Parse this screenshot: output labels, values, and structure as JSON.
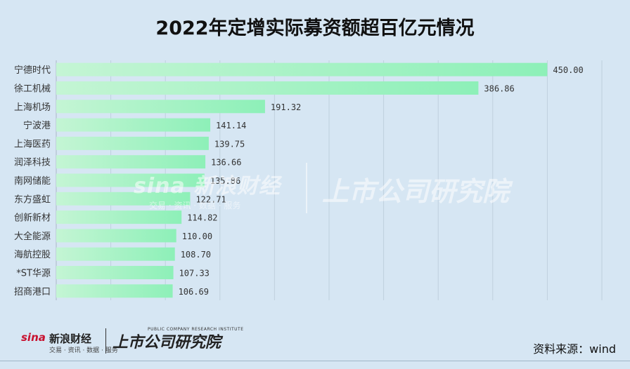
{
  "chart_data": {
    "type": "bar",
    "orientation": "horizontal",
    "title": "2022年定增实际募资额超百亿元情况",
    "categories": [
      "宁德时代",
      "徐工机械",
      "上海机场",
      "宁波港",
      "上海医药",
      "润泽科技",
      "南网储能",
      "东方盛虹",
      "创新新材",
      "大全能源",
      "海航控股",
      "*ST华源",
      "招商港口"
    ],
    "values": [
      450.0,
      386.86,
      191.32,
      141.14,
      139.75,
      136.66,
      135.86,
      122.71,
      114.82,
      110.0,
      108.7,
      107.33,
      106.69
    ],
    "value_labels": [
      "450.00",
      "386.86",
      "191.32",
      "141.14",
      "139.75",
      "136.66",
      "135.86",
      "122.71",
      "114.82",
      "110.00",
      "108.70",
      "107.33",
      "106.69"
    ],
    "xlim": [
      0,
      500
    ],
    "grid": true,
    "bar_color_start": "#c4f5d4",
    "bar_color_end": "#8df0b8"
  },
  "watermark": {
    "sina_text": "sina 新浪财经",
    "sina_sub": "交易 · 资讯 · 数据 · 服务",
    "right_text": "上市公司研究院"
  },
  "footer": {
    "sina_logo": "sina",
    "sina_cn": "新浪财经",
    "sina_sub": "交易 · 资讯 · 数据 · 服务",
    "right_logo": "上市公司研究院",
    "right_logo_sub": "PUBLIC COMPANY RESEARCH INSTITUTE",
    "source": "资料来源：wind"
  }
}
